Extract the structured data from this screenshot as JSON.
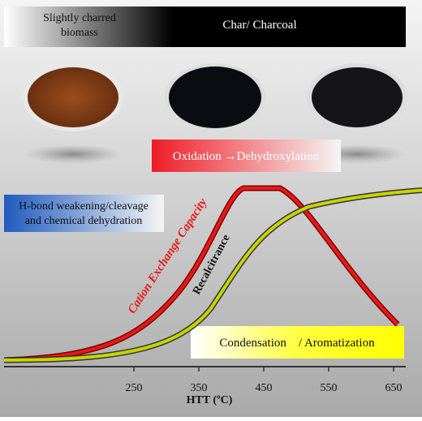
{
  "top_bar": {
    "left_label": "Slightly charred biomass",
    "right_label": "Char/ Charcoal"
  },
  "boxes": {
    "oxidation": "Oxidation →Dehydroxylation",
    "hbond": "H-bond weakening/cleavage and chemical  dehydration",
    "condensation": "Condensation    / Aromatization"
  },
  "curves": {
    "cec": "Cation Exchange Capacity",
    "recalcitrance": "Recalcitrance"
  },
  "x_axis": {
    "label": "HTT (ºC)",
    "xlim": [
      50,
      650
    ],
    "xticks": [
      250,
      350,
      450,
      550,
      650
    ]
  }
}
